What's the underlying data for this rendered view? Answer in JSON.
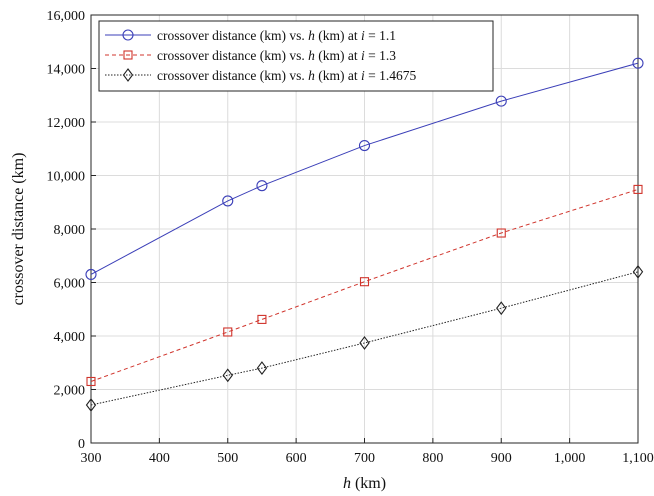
{
  "chart_data": {
    "type": "line",
    "xlabel": "h",
    "xlabel_unit": " (km)",
    "ylabel": "crossover distance (km)",
    "xlim": [
      300,
      1100
    ],
    "ylim": [
      0,
      16000
    ],
    "x_ticks": [
      "300",
      "400",
      "500",
      "600",
      "700",
      "800",
      "900",
      "1,000",
      "1,100"
    ],
    "y_ticks": [
      "0",
      "2,000",
      "4,000",
      "6,000",
      "8,000",
      "10,000",
      "12,000",
      "14,000",
      "16,000"
    ],
    "grid": true,
    "legend_position": "top-left",
    "x": [
      300,
      500,
      550,
      700,
      900,
      1100
    ],
    "series": [
      {
        "legend": {
          "prefix": "crossover distance (km) vs. ",
          "h": "h",
          "mid": " (km) at ",
          "i": "i",
          "suffix": " = 1.1"
        },
        "values": [
          6300,
          9050,
          9620,
          11120,
          12780,
          14200
        ],
        "color": "#3b3fb8",
        "marker": "circle",
        "line_style": "solid"
      },
      {
        "legend": {
          "prefix": "crossover distance (km) vs. ",
          "h": "h",
          "mid": " (km) at ",
          "i": "i",
          "suffix": " = 1.3"
        },
        "values": [
          2300,
          4150,
          4620,
          6030,
          7850,
          9480
        ],
        "color": "#d0342c",
        "marker": "square",
        "line_style": "dashed"
      },
      {
        "legend": {
          "prefix": "crossover distance (km) vs. ",
          "h": "h",
          "mid": " (km) at ",
          "i": "i",
          "suffix": " = 1.4675"
        },
        "values": [
          1420,
          2530,
          2800,
          3740,
          5040,
          6400
        ],
        "color": "#222222",
        "marker": "diamond",
        "line_style": "dotted"
      }
    ]
  }
}
